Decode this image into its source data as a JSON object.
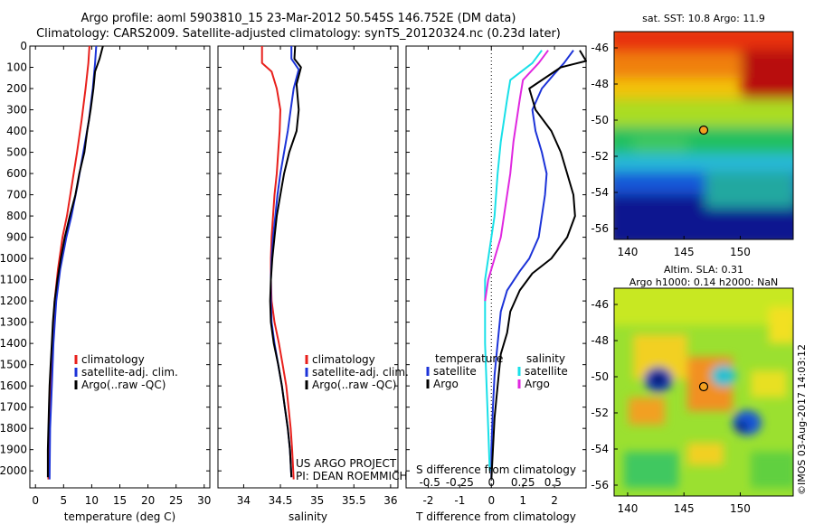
{
  "header": {
    "title_line1": "Argo profile: aoml 5903810_15 23-Mar-2012 50.545S 146.752E (DM data)",
    "title_line2": "Climatology: CARS2009. Satellite-adjusted climatology: synTS_20120324.nc (0.23d later)"
  },
  "colors": {
    "climatology": "#e8201c",
    "satellite": "#1c33d8",
    "argo": "#000000",
    "cyan": "#19e0e8",
    "magenta": "#e028e0"
  },
  "chart_data": [
    {
      "id": "temperature",
      "type": "line",
      "xlabel": "temperature (deg C)",
      "ylabel": "",
      "xlim": [
        -1,
        31
      ],
      "ylim": [
        2080,
        0
      ],
      "xticks": [
        0,
        5,
        10,
        15,
        20,
        25,
        30
      ],
      "yticks": [
        0,
        100,
        200,
        300,
        400,
        500,
        600,
        700,
        800,
        900,
        1000,
        1100,
        1200,
        1300,
        1400,
        1500,
        1600,
        1700,
        1800,
        1900,
        2000
      ],
      "legend": [
        "climatology",
        "satellite-adj. clim.",
        "Argo(..raw -QC)"
      ],
      "legend_position": "center-right",
      "series": [
        {
          "name": "climatology",
          "color": "#e8201c",
          "points": [
            [
              9.6,
              0
            ],
            [
              9.4,
              80
            ],
            [
              8.9,
              200
            ],
            [
              8.2,
              350
            ],
            [
              7.4,
              500
            ],
            [
              6.5,
              650
            ],
            [
              5.6,
              800
            ],
            [
              4.8,
              900
            ],
            [
              4.0,
              1050
            ],
            [
              3.4,
              1200
            ],
            [
              3.0,
              1400
            ],
            [
              2.7,
              1600
            ],
            [
              2.5,
              1800
            ],
            [
              2.3,
              2040
            ]
          ]
        },
        {
          "name": "satellite-adj. clim.",
          "color": "#1c33d8",
          "points": [
            [
              10.8,
              0
            ],
            [
              10.6,
              80
            ],
            [
              10.2,
              200
            ],
            [
              9.5,
              350
            ],
            [
              8.5,
              500
            ],
            [
              7.5,
              650
            ],
            [
              6.4,
              800
            ],
            [
              5.5,
              900
            ],
            [
              4.4,
              1050
            ],
            [
              3.7,
              1200
            ],
            [
              3.2,
              1400
            ],
            [
              2.9,
              1600
            ],
            [
              2.6,
              1800
            ],
            [
              2.5,
              2040
            ]
          ]
        },
        {
          "name": "Argo(..raw -QC)",
          "color": "#000000",
          "points": [
            [
              12.0,
              0
            ],
            [
              11.4,
              60
            ],
            [
              10.6,
              120
            ],
            [
              10.3,
              200
            ],
            [
              9.8,
              300
            ],
            [
              9.2,
              400
            ],
            [
              8.7,
              500
            ],
            [
              7.8,
              600
            ],
            [
              7.1,
              700
            ],
            [
              6.1,
              800
            ],
            [
              5.2,
              900
            ],
            [
              4.5,
              1000
            ],
            [
              3.9,
              1100
            ],
            [
              3.4,
              1200
            ],
            [
              3.1,
              1300
            ],
            [
              2.9,
              1400
            ],
            [
              2.7,
              1500
            ],
            [
              2.5,
              1600
            ],
            [
              2.4,
              1700
            ],
            [
              2.3,
              1800
            ],
            [
              2.2,
              1900
            ],
            [
              2.2,
              2030
            ]
          ]
        }
      ]
    },
    {
      "id": "salinity",
      "type": "line",
      "xlabel": "salinity",
      "ylabel": "",
      "xlim": [
        33.65,
        36.1
      ],
      "ylim": [
        2080,
        0
      ],
      "xticks": [
        34,
        34.5,
        35,
        35.5,
        36
      ],
      "legend": [
        "climatology",
        "satellite-adj. clim.",
        "Argo(..raw -QC)"
      ],
      "legend_position": "center-right",
      "annotation": [
        "US ARGO PROJECT",
        "PI: DEAN ROEMMICH"
      ],
      "series": [
        {
          "name": "climatology",
          "color": "#e8201c",
          "points": [
            [
              34.25,
              0
            ],
            [
              34.25,
              80
            ],
            [
              34.38,
              120
            ],
            [
              34.45,
              200
            ],
            [
              34.5,
              300
            ],
            [
              34.49,
              400
            ],
            [
              34.47,
              500
            ],
            [
              34.45,
              600
            ],
            [
              34.42,
              700
            ],
            [
              34.4,
              800
            ],
            [
              34.38,
              900
            ],
            [
              34.37,
              1000
            ],
            [
              34.37,
              1100
            ],
            [
              34.38,
              1200
            ],
            [
              34.42,
              1300
            ],
            [
              34.48,
              1400
            ],
            [
              34.53,
              1500
            ],
            [
              34.58,
              1600
            ],
            [
              34.61,
              1700
            ],
            [
              34.64,
              1800
            ],
            [
              34.66,
              1900
            ],
            [
              34.68,
              2040
            ]
          ]
        },
        {
          "name": "satellite-adj. clim.",
          "color": "#1c33d8",
          "points": [
            [
              34.65,
              0
            ],
            [
              34.65,
              60
            ],
            [
              34.75,
              110
            ],
            [
              34.68,
              200
            ],
            [
              34.64,
              300
            ],
            [
              34.6,
              400
            ],
            [
              34.55,
              500
            ],
            [
              34.5,
              600
            ],
            [
              34.46,
              700
            ],
            [
              34.43,
              800
            ],
            [
              34.4,
              900
            ],
            [
              34.38,
              1000
            ],
            [
              34.37,
              1100
            ],
            [
              34.37,
              1200
            ],
            [
              34.38,
              1300
            ],
            [
              34.42,
              1400
            ],
            [
              34.47,
              1500
            ],
            [
              34.52,
              1600
            ],
            [
              34.56,
              1700
            ],
            [
              34.6,
              1800
            ],
            [
              34.63,
              1900
            ],
            [
              34.65,
              2030
            ]
          ]
        },
        {
          "name": "Argo(..raw -QC)",
          "color": "#000000",
          "points": [
            [
              34.7,
              0
            ],
            [
              34.69,
              60
            ],
            [
              34.78,
              100
            ],
            [
              34.72,
              180
            ],
            [
              34.75,
              300
            ],
            [
              34.72,
              400
            ],
            [
              34.62,
              500
            ],
            [
              34.55,
              600
            ],
            [
              34.5,
              700
            ],
            [
              34.45,
              800
            ],
            [
              34.42,
              900
            ],
            [
              34.39,
              1000
            ],
            [
              34.37,
              1100
            ],
            [
              34.36,
              1200
            ],
            [
              34.37,
              1300
            ],
            [
              34.41,
              1400
            ],
            [
              34.47,
              1500
            ],
            [
              34.52,
              1600
            ],
            [
              34.56,
              1700
            ],
            [
              34.6,
              1800
            ],
            [
              34.63,
              1900
            ],
            [
              34.65,
              2030
            ]
          ]
        }
      ]
    },
    {
      "id": "differences",
      "type": "line",
      "xlabel": "T difference from climatology",
      "xlabel_top": "S difference from climatology",
      "ylabel": "",
      "xlim": [
        -2.7,
        3.0
      ],
      "ylim": [
        2080,
        0
      ],
      "xticks": [
        -2,
        -1,
        0,
        1,
        2
      ],
      "s_ticks": [
        "-0.5",
        "-0.25",
        "0",
        "0.25",
        "0.5"
      ],
      "legend_temperature": [
        "temperature",
        "satellite",
        "Argo"
      ],
      "legend_salinity": [
        "salinity",
        "satellite",
        "Argo"
      ],
      "series": [
        {
          "name": "temperature satellite",
          "color": "#1c33d8",
          "points": [
            [
              2.6,
              20
            ],
            [
              2.3,
              80
            ],
            [
              2.0,
              130
            ],
            [
              1.6,
              200
            ],
            [
              1.3,
              300
            ],
            [
              1.4,
              400
            ],
            [
              1.6,
              500
            ],
            [
              1.75,
              600
            ],
            [
              1.7,
              700
            ],
            [
              1.6,
              800
            ],
            [
              1.5,
              900
            ],
            [
              1.2,
              1000
            ],
            [
              0.9,
              1060
            ],
            [
              0.5,
              1150
            ],
            [
              0.3,
              1250
            ],
            [
              0.2,
              1400
            ],
            [
              0.1,
              1550
            ],
            [
              0.05,
              1700
            ],
            [
              0.0,
              1900
            ],
            [
              0.0,
              2040
            ]
          ]
        },
        {
          "name": "temperature Argo",
          "color": "#000000",
          "points": [
            [
              2.8,
              20
            ],
            [
              3.0,
              70
            ],
            [
              2.2,
              100
            ],
            [
              1.2,
              200
            ],
            [
              1.4,
              300
            ],
            [
              1.9,
              400
            ],
            [
              2.2,
              500
            ],
            [
              2.4,
              600
            ],
            [
              2.6,
              700
            ],
            [
              2.65,
              800
            ],
            [
              2.4,
              900
            ],
            [
              1.9,
              1000
            ],
            [
              1.3,
              1070
            ],
            [
              0.9,
              1150
            ],
            [
              0.6,
              1250
            ],
            [
              0.5,
              1350
            ],
            [
              0.3,
              1450
            ],
            [
              0.2,
              1600
            ],
            [
              0.1,
              1750
            ],
            [
              0.05,
              1900
            ],
            [
              0.0,
              2040
            ]
          ]
        },
        {
          "name": "salinity satellite",
          "color": "#19e0e8",
          "points": [
            [
              1.6,
              20
            ],
            [
              1.3,
              80
            ],
            [
              0.6,
              160
            ],
            [
              0.5,
              250
            ],
            [
              0.4,
              350
            ],
            [
              0.3,
              450
            ],
            [
              0.2,
              600
            ],
            [
              0.1,
              800
            ],
            [
              0.0,
              900
            ],
            [
              -0.1,
              1000
            ],
            [
              -0.2,
              1100
            ],
            [
              -0.2,
              1250
            ],
            [
              -0.2,
              1400
            ],
            [
              -0.15,
              1600
            ],
            [
              -0.1,
              1800
            ],
            [
              -0.05,
              2000
            ]
          ]
        },
        {
          "name": "salinity Argo",
          "color": "#e028e0",
          "points": [
            [
              1.8,
              20
            ],
            [
              1.5,
              80
            ],
            [
              1.0,
              160
            ],
            [
              0.9,
              250
            ],
            [
              0.8,
              350
            ],
            [
              0.7,
              450
            ],
            [
              0.6,
              600
            ],
            [
              0.5,
              700
            ],
            [
              0.4,
              800
            ],
            [
              0.3,
              900
            ],
            [
              0.1,
              1000
            ],
            [
              -0.1,
              1100
            ],
            [
              -0.2,
              1200
            ]
          ]
        }
      ]
    },
    {
      "id": "sst_map",
      "type": "heatmap",
      "title": "sat. SST: 10.8 Argo: 11.9",
      "xticks": [
        140,
        145,
        150
      ],
      "yticks": [
        -46,
        -48,
        -50,
        -52,
        -54,
        -56
      ],
      "xlim": [
        138.8,
        154.7
      ],
      "ylim": [
        -56.6,
        -45.1
      ],
      "marker": [
        146.75,
        -50.55
      ]
    },
    {
      "id": "sla_map",
      "type": "heatmap",
      "title_line1": "Altim. SLA: 0.31",
      "title_line2": "Argo h1000: 0.14 h2000: NaN",
      "xticks": [
        140,
        145,
        150
      ],
      "yticks": [
        -46,
        -48,
        -50,
        -52,
        -54,
        -56
      ],
      "xlim": [
        138.8,
        154.7
      ],
      "ylim": [
        -56.6,
        -45.1
      ],
      "marker": [
        146.75,
        -50.55
      ],
      "side_label": "©IMOS 03-Aug-2017 14:03:12"
    }
  ]
}
